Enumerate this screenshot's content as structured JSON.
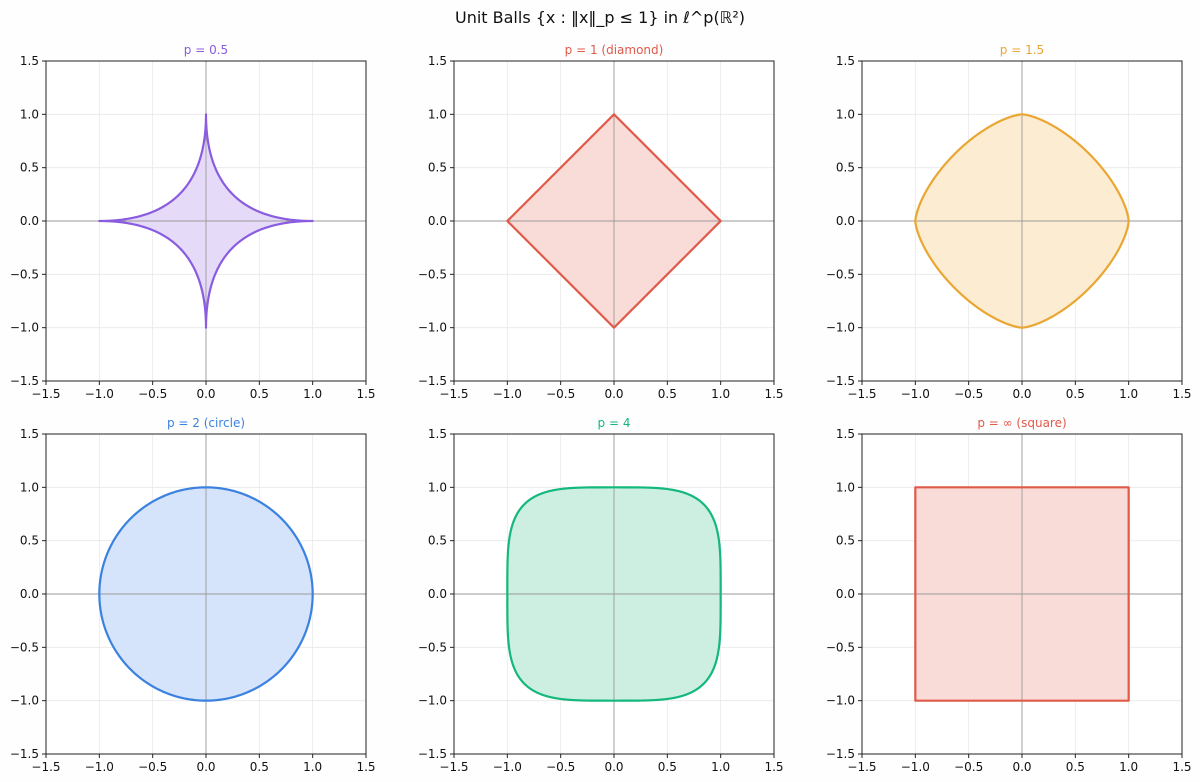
{
  "figure": {
    "title": "Unit Balls {x : ‖x‖_p ≤ 1} in ℓ^p(ℝ²)"
  },
  "chart_data": [
    {
      "type": "area",
      "title": "p = 0.5",
      "p": 0.5,
      "color": "#8a5ce0",
      "fill": "#e5dbf9",
      "xlim": [
        -1.5,
        1.5
      ],
      "ylim": [
        -1.5,
        1.5
      ],
      "xticks": [
        "−1.5",
        "−1.0",
        "−0.5",
        "0.0",
        "0.5",
        "1.0",
        "1.5"
      ],
      "yticks": [
        "−1.5",
        "−1.0",
        "−0.5",
        "0.0",
        "0.5",
        "1.0",
        "1.5"
      ],
      "grid": true
    },
    {
      "type": "area",
      "title": "p = 1 (diamond)",
      "p": 1,
      "color": "#e05a4a",
      "fill": "#f9dbd8",
      "xlim": [
        -1.5,
        1.5
      ],
      "ylim": [
        -1.5,
        1.5
      ],
      "xticks": [
        "−1.5",
        "−1.0",
        "−0.5",
        "0.0",
        "0.5",
        "1.0",
        "1.5"
      ],
      "yticks": [
        "−1.5",
        "−1.0",
        "−0.5",
        "0.0",
        "0.5",
        "1.0",
        "1.5"
      ],
      "grid": true
    },
    {
      "type": "area",
      "title": "p = 1.5",
      "p": 1.5,
      "color": "#eaa632",
      "fill": "#fcecd1",
      "xlim": [
        -1.5,
        1.5
      ],
      "ylim": [
        -1.5,
        1.5
      ],
      "xticks": [
        "−1.5",
        "−1.0",
        "−0.5",
        "0.0",
        "0.5",
        "1.0",
        "1.5"
      ],
      "yticks": [
        "−1.5",
        "−1.0",
        "−0.5",
        "0.0",
        "0.5",
        "1.0",
        "1.5"
      ],
      "grid": true
    },
    {
      "type": "area",
      "title": "p = 2 (circle)",
      "p": 2,
      "color": "#3b82e0",
      "fill": "#d5e3fb",
      "xlim": [
        -1.5,
        1.5
      ],
      "ylim": [
        -1.5,
        1.5
      ],
      "xticks": [
        "−1.5",
        "−1.0",
        "−0.5",
        "0.0",
        "0.5",
        "1.0",
        "1.5"
      ],
      "yticks": [
        "−1.5",
        "−1.0",
        "−0.5",
        "0.0",
        "0.5",
        "1.0",
        "1.5"
      ],
      "grid": true
    },
    {
      "type": "area",
      "title": "p = 4",
      "p": 4,
      "color": "#14b87c",
      "fill": "#ccefe2",
      "xlim": [
        -1.5,
        1.5
      ],
      "ylim": [
        -1.5,
        1.5
      ],
      "xticks": [
        "−1.5",
        "−1.0",
        "−0.5",
        "0.0",
        "0.5",
        "1.0",
        "1.5"
      ],
      "yticks": [
        "−1.5",
        "−1.0",
        "−0.5",
        "0.0",
        "0.5",
        "1.0",
        "1.5"
      ],
      "grid": true
    },
    {
      "type": "area",
      "title": "p = ∞ (square)",
      "p": "inf",
      "color": "#e05a4a",
      "fill": "#f9dbd8",
      "xlim": [
        -1.5,
        1.5
      ],
      "ylim": [
        -1.5,
        1.5
      ],
      "xticks": [
        "−1.5",
        "−1.0",
        "−0.5",
        "0.0",
        "0.5",
        "1.0",
        "1.5"
      ],
      "yticks": [
        "−1.5",
        "−1.0",
        "−0.5",
        "0.0",
        "0.5",
        "1.0",
        "1.5"
      ],
      "grid": true
    }
  ]
}
